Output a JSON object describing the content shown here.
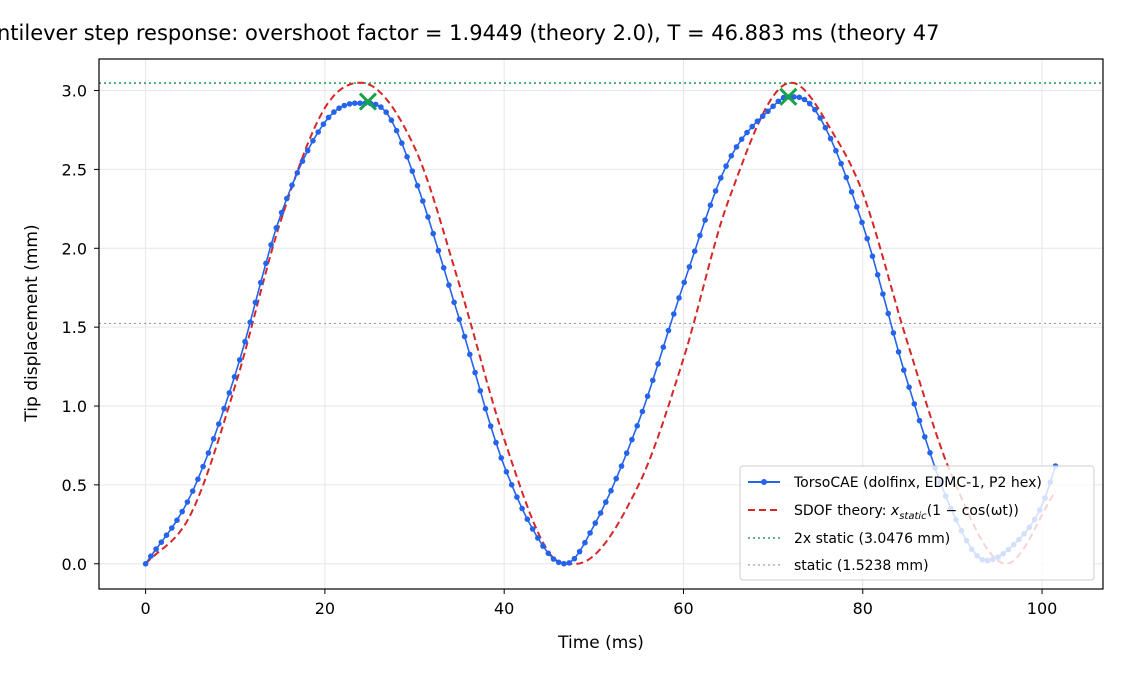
{
  "chart_data": {
    "type": "line",
    "title": "ntilever step response: overshoot factor = 1.9449 (theory 2.0), T = 46.883 ms (theory 47",
    "xlabel": "Time (ms)",
    "ylabel": "Tip displacement (mm)",
    "xlim": [
      -5.2,
      106.8
    ],
    "ylim": [
      -0.16,
      3.2
    ],
    "xticks": [
      0,
      20,
      40,
      60,
      80,
      100
    ],
    "yticks": [
      0.0,
      0.5,
      1.0,
      1.5,
      2.0,
      2.5,
      3.0
    ],
    "xtick_labels": [
      "0",
      "20",
      "40",
      "60",
      "80",
      "100"
    ],
    "ytick_labels": [
      "0.0",
      "0.5",
      "1.0",
      "1.5",
      "2.0",
      "2.5",
      "3.0"
    ],
    "grid": true,
    "legend_position": "lower-right",
    "series": [
      {
        "name": "TorsoCAE (dolfinx, EDMC-1, P2 hex)",
        "kind": "line-with-markers",
        "color": "#2563eb",
        "x": [
          0,
          5,
          10,
          15,
          20,
          23.5,
          24.5,
          27,
          30,
          35,
          40,
          45,
          46.88,
          50,
          55,
          60,
          65,
          70,
          71.5,
          72.5,
          75,
          80,
          85,
          90,
          93.76,
          97,
          100,
          101.5
        ],
        "y": [
          0.0,
          0.43,
          1.2,
          2.2,
          2.8,
          2.92,
          2.92,
          2.85,
          2.45,
          1.55,
          0.62,
          0.06,
          0.0,
          0.24,
          0.9,
          1.77,
          2.55,
          2.9,
          2.96,
          2.96,
          2.85,
          2.15,
          1.15,
          0.33,
          0.02,
          0.13,
          0.37,
          0.62
        ]
      },
      {
        "name": "SDOF theory: x_static(1 − cos(ωt))",
        "kind": "dashed",
        "color": "#d62728",
        "x": [
          0,
          5,
          10,
          15,
          20,
          24,
          30,
          35,
          40,
          45,
          48,
          55,
          60,
          65,
          72,
          77,
          80,
          85,
          90,
          96,
          101.5
        ],
        "y": [
          0.0,
          0.31,
          1.13,
          2.16,
          2.89,
          3.05,
          2.64,
          1.77,
          0.79,
          0.07,
          0.0,
          0.5,
          1.3,
          2.3,
          3.05,
          2.7,
          2.35,
          1.4,
          0.55,
          0.0,
          0.46
        ]
      },
      {
        "name": "2x static (3.0476 mm)",
        "kind": "hline-dotted",
        "color": "#2ca05a",
        "y": 3.0476
      },
      {
        "name": "static (1.5238 mm)",
        "kind": "hline-dotted",
        "color": "#a0a0a0",
        "y": 1.5238
      }
    ],
    "peak_markers": {
      "color": "#16a34a",
      "points": [
        {
          "x": 24.8,
          "y": 2.93
        },
        {
          "x": 71.7,
          "y": 2.96
        }
      ]
    },
    "theory_period_ms": 47.0,
    "data_period_ms": 46.883
  },
  "legend": {
    "entries": [
      {
        "label": "TorsoCAE (dolfinx, EDMC-1, P2 hex)",
        "color": "#2563eb",
        "style": "line-marker"
      },
      {
        "label_prefix": "SDOF theory: ",
        "label_math": "x",
        "label_sub": "static",
        "label_suffix": "(1 − cos(ωt))",
        "color": "#d62728",
        "style": "dashed"
      },
      {
        "label": "2x static (3.0476 mm)",
        "color": "#2ca05a",
        "style": "dotted"
      },
      {
        "label": "static (1.5238 mm)",
        "color": "#a0a0a0",
        "style": "dotted"
      }
    ]
  }
}
